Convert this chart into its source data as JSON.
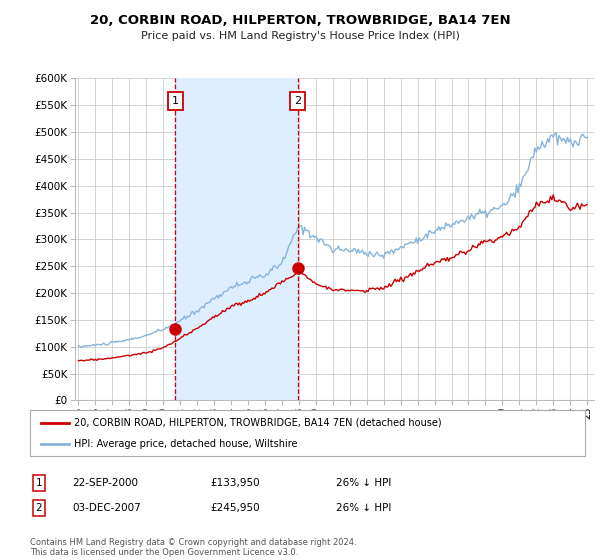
{
  "title": "20, CORBIN ROAD, HILPERTON, TROWBRIDGE, BA14 7EN",
  "subtitle": "Price paid vs. HM Land Registry's House Price Index (HPI)",
  "legend_house": "20, CORBIN ROAD, HILPERTON, TROWBRIDGE, BA14 7EN (detached house)",
  "legend_hpi": "HPI: Average price, detached house, Wiltshire",
  "footer": "Contains HM Land Registry data © Crown copyright and database right 2024.\nThis data is licensed under the Open Government Licence v3.0.",
  "annotation1_label": "1",
  "annotation1_date": "22-SEP-2000",
  "annotation1_price": "£133,950",
  "annotation1_hpi": "26% ↓ HPI",
  "annotation2_label": "2",
  "annotation2_date": "03-DEC-2007",
  "annotation2_price": "£245,950",
  "annotation2_hpi": "26% ↓ HPI",
  "house_color": "#cc0000",
  "hpi_color": "#89b4d9",
  "shade_color": "#ddeeff",
  "annotation_color": "#cc0000",
  "background_color": "#ffffff",
  "grid_color": "#cccccc",
  "ylim": [
    0,
    600000
  ],
  "yticks": [
    0,
    50000,
    100000,
    150000,
    200000,
    250000,
    300000,
    350000,
    400000,
    450000,
    500000,
    550000,
    600000
  ],
  "sale1_x": 2000.72,
  "sale1_y": 133950,
  "sale2_x": 2007.92,
  "sale2_y": 245950,
  "vline1_x": 2000.72,
  "vline2_x": 2007.92,
  "xlim": [
    1994.8,
    2025.4
  ]
}
